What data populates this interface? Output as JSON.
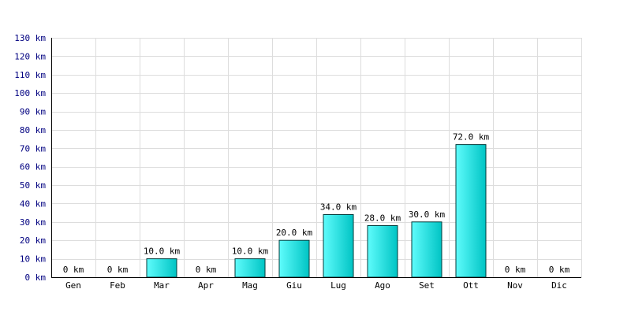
{
  "chart_data": {
    "type": "bar",
    "categories": [
      "Gen",
      "Feb",
      "Mar",
      "Apr",
      "Mag",
      "Giu",
      "Lug",
      "Ago",
      "Set",
      "Ott",
      "Nov",
      "Dic"
    ],
    "values": [
      0,
      0,
      10,
      0,
      10,
      20,
      34,
      28,
      30,
      72,
      0,
      0
    ],
    "data_labels": [
      "0 km",
      "0 km",
      "10.0 km",
      "0 km",
      "10.0 km",
      "20.0 km",
      "34.0 km",
      "28.0 km",
      "30.0 km",
      "72.0 km",
      "0 km",
      "0 km"
    ],
    "y_ticks": [
      0,
      10,
      20,
      30,
      40,
      50,
      60,
      70,
      80,
      90,
      100,
      110,
      120,
      130
    ],
    "y_tick_labels": [
      "0 km",
      "10 km",
      "20 km",
      "30 km",
      "40 km",
      "50 km",
      "60 km",
      "70 km",
      "80 km",
      "90 km",
      "100 km",
      "110 km",
      "120 km",
      "130 km"
    ],
    "ylim": [
      0,
      130
    ],
    "grid": true,
    "colors": {
      "bar_fill_light": "#5ffcfc",
      "bar_fill_dark": "#00c4c4",
      "bar_stroke": "#003a3a",
      "grid": "#dddddd",
      "axis": "#000000",
      "y_tick_text": "#000080",
      "x_tick_text": "#000000",
      "data_label_text": "#000000"
    }
  }
}
